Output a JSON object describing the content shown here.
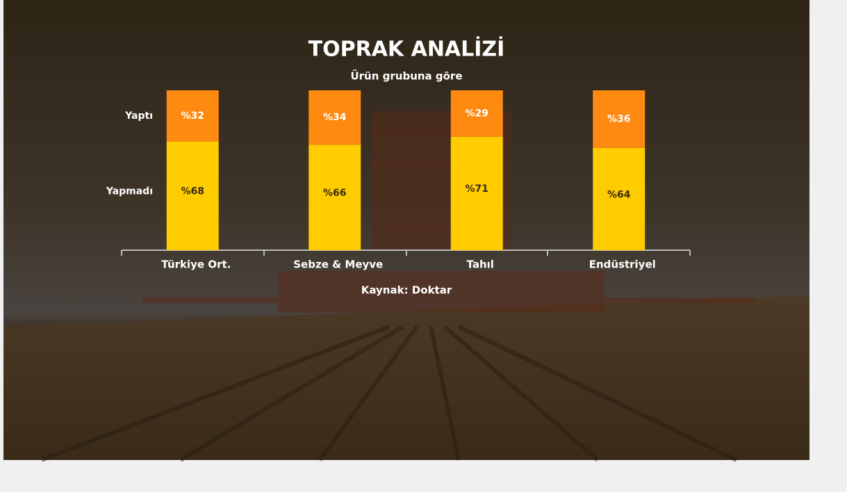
{
  "chart_data": {
    "type": "stacked-bar",
    "title": "TOPRAK ANALİZİ",
    "subtitle": "Ürün grubuna göre",
    "source": "Kaynak: Doktar",
    "categories": [
      "Türkiye Ort.",
      "Sebze & Meyve",
      "Tahıl",
      "Endüstriyel"
    ],
    "series": [
      {
        "name": "Yaptı",
        "color": "#ff8a12",
        "values": [
          32,
          34,
          29,
          36
        ],
        "value_labels": [
          "%32",
          "%34",
          "%29",
          "%36"
        ]
      },
      {
        "name": "Yapmadı",
        "color": "#ffcc00",
        "values": [
          68,
          66,
          71,
          64
        ],
        "value_labels": [
          "%68",
          "%66",
          "%71",
          "%64"
        ]
      }
    ]
  }
}
